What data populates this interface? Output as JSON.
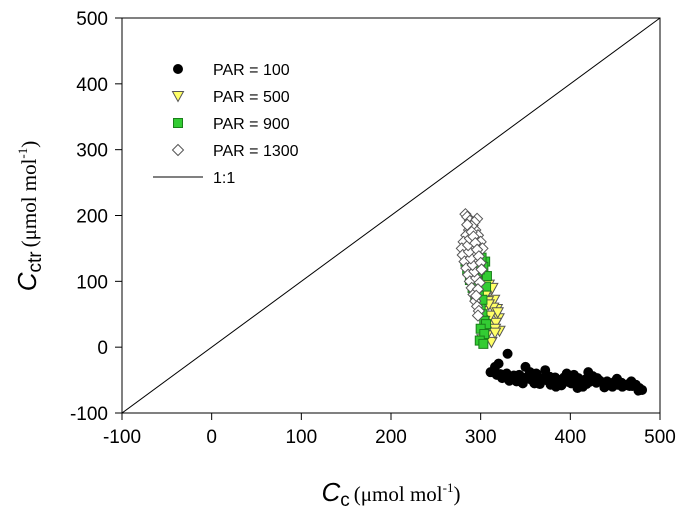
{
  "chart_data": {
    "type": "scatter",
    "xlim": [
      -100,
      500
    ],
    "ylim": [
      -100,
      500
    ],
    "x_ticks": [
      -100,
      0,
      100,
      200,
      300,
      400,
      500
    ],
    "y_ticks": [
      -100,
      0,
      100,
      200,
      300,
      400,
      500
    ],
    "grid": false,
    "legend_position": "top-left",
    "xlabel": {
      "symbol": "C",
      "subscript": "c",
      "units_open": "(μmol mol",
      "units_exp": "-1",
      "units_close": ")"
    },
    "ylabel": {
      "symbol": "C",
      "subscript": "ctr",
      "units_open": "(μmol mol",
      "units_exp": "-1",
      "units_close": ")"
    },
    "series": [
      {
        "name": "PAR = 100",
        "marker": "circle",
        "fill": "#000000",
        "stroke": "#000000",
        "x": [
          311,
          315,
          318,
          322,
          326,
          329,
          333,
          337,
          341,
          345,
          349,
          353,
          357,
          361,
          365,
          369,
          373,
          377,
          381,
          385,
          389,
          393,
          397,
          401,
          405,
          409,
          413,
          417,
          421,
          425,
          429,
          433,
          437,
          441,
          445,
          449,
          453,
          457,
          461,
          465,
          469,
          473,
          477,
          330,
          340,
          350,
          360,
          372,
          384,
          396,
          408,
          420,
          336,
          355,
          378,
          401,
          425,
          447,
          468,
          480,
          320,
          324,
          346,
          366,
          390,
          414,
          438,
          458,
          343,
          362,
          383,
          404,
          430,
          452,
          332,
          316,
          347,
          371,
          398,
          418,
          444,
          466,
          476
        ],
        "y": [
          -38,
          -36,
          -42,
          -41,
          -44,
          -40,
          -46,
          -43,
          -47,
          -45,
          -49,
          -44,
          -50,
          -46,
          -51,
          -47,
          -50,
          -45,
          -52,
          -49,
          -50,
          -46,
          -51,
          -48,
          -50,
          -47,
          -52,
          -49,
          -53,
          -50,
          -54,
          -51,
          -55,
          -52,
          -56,
          -53,
          -57,
          -54,
          -58,
          -56,
          -59,
          -57,
          -62,
          -10,
          -52,
          -30,
          -55,
          -35,
          -60,
          -40,
          -62,
          -38,
          -48,
          -38,
          -57,
          -55,
          -44,
          -60,
          -52,
          -65,
          -25,
          -47,
          -53,
          -56,
          -58,
          -60,
          -61,
          -60,
          -42,
          -40,
          -46,
          -42,
          -47,
          -48,
          -51,
          -30,
          -55,
          -49,
          -53,
          -56,
          -58,
          -59,
          -66
        ]
      },
      {
        "name": "PAR = 500",
        "marker": "triangle-down",
        "fill": "#ffff66",
        "stroke": "#555555",
        "x": [
          301,
          305,
          309,
          312,
          315,
          318,
          320,
          310,
          314,
          317,
          321,
          306,
          311,
          316,
          302,
          308,
          313,
          319,
          304,
          307,
          312,
          316,
          303,
          309
        ],
        "y": [
          115,
          102,
          95,
          88,
          72,
          58,
          44,
          33,
          60,
          37,
          25,
          80,
          48,
          28,
          12,
          70,
          90,
          53,
          40,
          18,
          8,
          22,
          55,
          65
        ]
      },
      {
        "name": "PAR = 900",
        "marker": "square",
        "fill": "#33cc33",
        "stroke": "#1a7f1a",
        "x": [
          283,
          285,
          288,
          291,
          294,
          297,
          300,
          302,
          304,
          306,
          307,
          305,
          303,
          301,
          299,
          296,
          293,
          290,
          298,
          302,
          300,
          304,
          306,
          299,
          303
        ],
        "y": [
          130,
          118,
          102,
          90,
          76,
          68,
          60,
          50,
          40,
          35,
          108,
          130,
          122,
          136,
          118,
          105,
          99,
          112,
          85,
          72,
          28,
          20,
          92,
          10,
          5
        ]
      },
      {
        "name": "PAR = 1300",
        "marker": "diamond",
        "fill": "#ffffff",
        "stroke": "#555555",
        "x": [
          283,
          285,
          288,
          291,
          294,
          297,
          300,
          302,
          296,
          293,
          290,
          287,
          284,
          281,
          279,
          280,
          282,
          284,
          286,
          288,
          290,
          292,
          294,
          296,
          298,
          297,
          295,
          293,
          291,
          289,
          287,
          286,
          288,
          290,
          292,
          294,
          296,
          298,
          300,
          301,
          299,
          297,
          295,
          285
        ],
        "y": [
          202,
          198,
          192,
          185,
          178,
          170,
          160,
          150,
          195,
          190,
          184,
          178,
          170,
          160,
          150,
          140,
          130,
          120,
          110,
          100,
          90,
          80,
          70,
          62,
          55,
          48,
          105,
          115,
          125,
          135,
          145,
          155,
          165,
          175,
          168,
          158,
          148,
          138,
          128,
          118,
          98,
          88,
          78,
          186
        ]
      },
      {
        "name": "1:1",
        "marker": "line",
        "stroke": "#000000",
        "x": [
          -100,
          500
        ],
        "y": [
          -100,
          500
        ]
      }
    ]
  }
}
